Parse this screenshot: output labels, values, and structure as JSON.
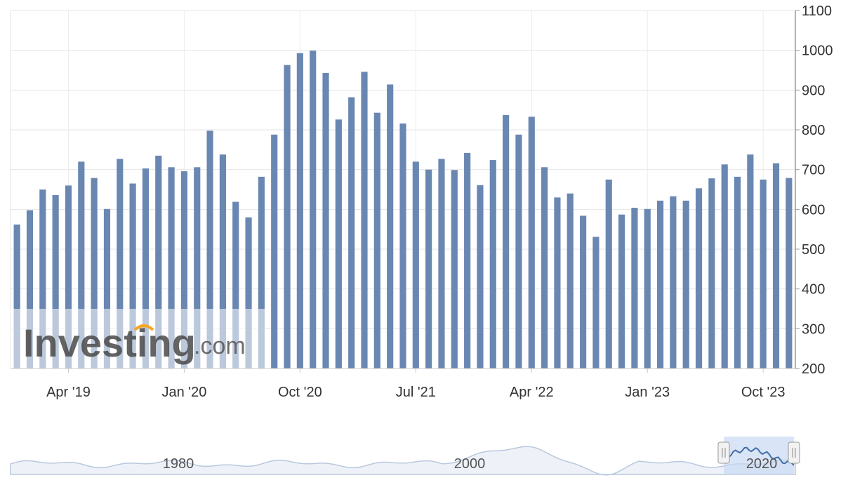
{
  "chart_data": {
    "type": "bar",
    "color": "#6a87b2",
    "grid": true,
    "y_axis_position": "right",
    "ylim": [
      200,
      1100
    ],
    "y_ticks": [
      "1100",
      "1000",
      "900",
      "800",
      "700",
      "600",
      "500",
      "400",
      "300",
      "200"
    ],
    "x_tick_labels": [
      {
        "label": "Apr '19",
        "index": 4
      },
      {
        "label": "Jan '20",
        "index": 13
      },
      {
        "label": "Oct '20",
        "index": 22
      },
      {
        "label": "Jul '21",
        "index": 31
      },
      {
        "label": "Apr '22",
        "index": 40
      },
      {
        "label": "Jan '23",
        "index": 49
      },
      {
        "label": "Oct '23",
        "index": 58
      }
    ],
    "values": [
      562,
      598,
      650,
      636,
      660,
      720,
      679,
      601,
      727,
      665,
      703,
      735,
      706,
      696,
      706,
      798,
      738,
      619,
      580,
      682,
      788,
      963,
      993,
      999,
      943,
      826,
      882,
      946,
      843,
      914,
      816,
      720,
      700,
      727,
      699,
      742,
      661,
      724,
      837,
      788,
      833,
      706,
      630,
      640,
      584,
      531,
      675,
      587,
      604,
      601,
      622,
      633,
      622,
      653,
      678,
      713,
      682,
      738,
      675,
      716,
      679
    ]
  },
  "watermark": {
    "brand": "Investing",
    "suffix": ".com"
  },
  "navigator": {
    "labels": [
      "1980",
      "2000",
      "2020"
    ]
  }
}
